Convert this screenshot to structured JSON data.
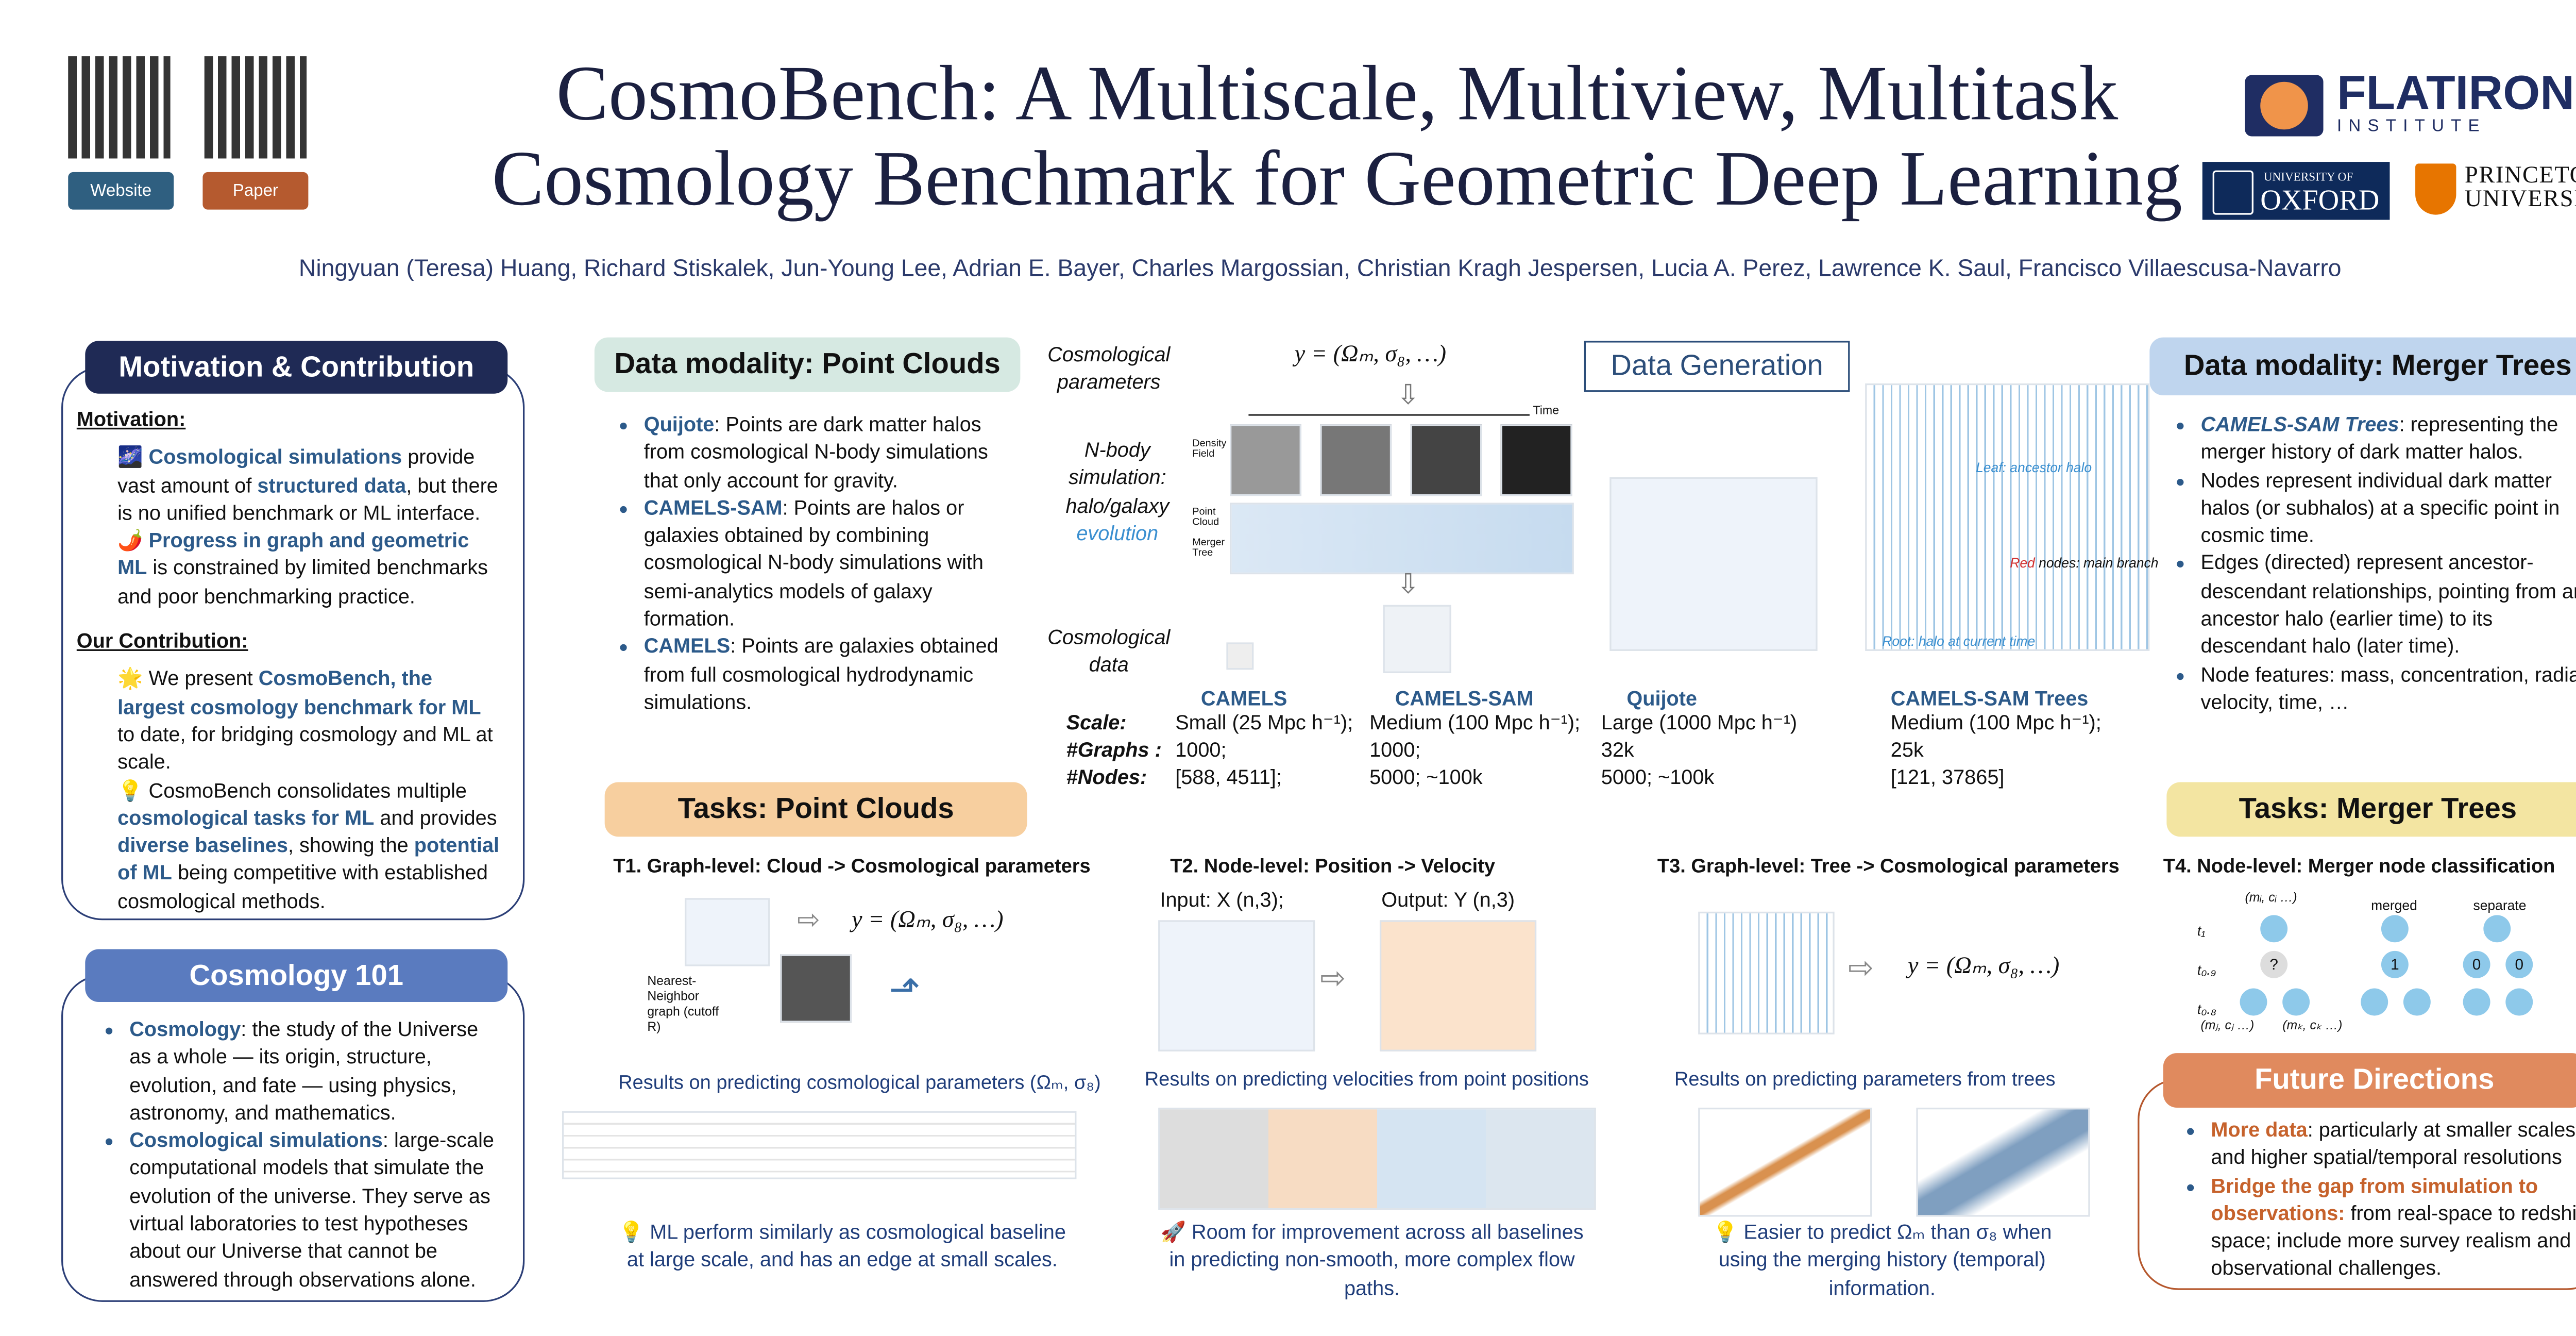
{
  "header": {
    "title_lines": [
      "CosmoBench: A Multiscale, Multiview, Multitask",
      "Cosmology Benchmark for Geometric Deep Learning"
    ],
    "authors": "Ningyuan (Teresa) Huang, Richard Stiskalek, Jun-Young Lee, Adrian E. Bayer, Charles Margossian, Christian Kragh Jespersen, Lucia A. Perez, Lawrence K. Saul, Francisco Villaescusa-Navarro",
    "buttons": [
      "Website",
      "Paper"
    ],
    "logos": {
      "flatiron": [
        "FLATIRON",
        "INSTITUTE"
      ],
      "oxford": [
        "UNIVERSITY OF",
        "OXFORD"
      ],
      "princeton": [
        "PRINCETON",
        "UNIVERSITY"
      ]
    }
  },
  "motivation": {
    "heading": "Motivation & Contribution",
    "sections": [
      {
        "heading": "Motivation:",
        "paragraphs": [
          [
            {
              "t": "🌌 "
            },
            {
              "t": "Cosmological simulations",
              "s": "hl"
            },
            {
              "t": " provide vast amount of "
            },
            {
              "t": "structured data",
              "s": "hl"
            },
            {
              "t": ", but there is no unified benchmark or ML interface."
            }
          ],
          [
            {
              "t": "🌶️ "
            },
            {
              "t": "Progress in graph and geometric ML",
              "s": "hl"
            },
            {
              "t": " is constrained by limited benchmarks and poor benchmarking practice."
            }
          ]
        ]
      },
      {
        "heading": "Our Contribution:",
        "paragraphs": [
          [
            {
              "t": "🌟 We present "
            },
            {
              "t": "CosmoBench, the largest cosmology benchmark for ML",
              "s": "hl"
            },
            {
              "t": " to date, for bridging cosmology and ML at scale."
            }
          ],
          [
            {
              "t": "💡 CosmoBench consolidates multiple "
            },
            {
              "t": "cosmological tasks for ML",
              "s": "hl"
            },
            {
              "t": " and provides "
            },
            {
              "t": "diverse baselines",
              "s": "hl"
            },
            {
              "t": ", showing the "
            },
            {
              "t": "potential of ML",
              "s": "hl"
            },
            {
              "t": " being competitive with established cosmological methods."
            }
          ]
        ]
      }
    ]
  },
  "cosmology101": {
    "heading": "Cosmology 101",
    "bullets": [
      [
        {
          "t": "Cosmology",
          "s": "hl"
        },
        {
          "t": ": the study of the Universe as a whole — its origin, structure, evolution, and fate — using physics, astronomy, and mathematics."
        }
      ],
      [
        {
          "t": "Cosmological simulations",
          "s": "hl"
        },
        {
          "t": ": large-scale computational models that simulate the evolution of the universe. They serve as virtual laboratories to test hypotheses about our Universe that cannot be answered through observations alone."
        }
      ]
    ]
  },
  "point_clouds": {
    "heading": "Data modality: Point Clouds",
    "bullets": [
      [
        {
          "t": "Quijote",
          "s": "hl"
        },
        {
          "t": ": Points are dark matter halos from cosmological N-body simulations that only account for gravity."
        }
      ],
      [
        {
          "t": "CAMELS-SAM",
          "s": "hl"
        },
        {
          "t": ": Points are halos or galaxies obtained by combining cosmological N-body simulations with semi-analytics models of galaxy formation."
        }
      ],
      [
        {
          "t": "CAMELS",
          "s": "hl"
        },
        {
          "t": ":  Points are galaxies obtained from full cosmological hydrodynamic simulations."
        }
      ]
    ]
  },
  "generation": {
    "heading": "Data Generation",
    "cosmo_params": "Cosmological parameters",
    "formula": "y = (Ωₘ,  σ₈,  …)",
    "time": "Time",
    "sim_label": [
      {
        "t": "N-body simulation: halo/galaxy "
      },
      {
        "t": "evolution",
        "s": "blue"
      }
    ],
    "row_labels": [
      "Density Field",
      "Point Cloud",
      "Merger Tree"
    ],
    "cosmo_data": "Cosmological data",
    "tree_notes": {
      "leaf": "Leaf: ancestor halo",
      "red": "Red",
      "red_rest": " nodes: main branch",
      "root": "Root: halo at current time"
    }
  },
  "stats": {
    "labels": [
      "Scale:",
      "#Graphs :",
      "#Nodes:"
    ],
    "columns": [
      {
        "name": "CAMELS",
        "rows": [
          "Small (25 Mpc h⁻¹);",
          "1000;",
          "[588, 4511];"
        ]
      },
      {
        "name": "CAMELS-SAM",
        "rows": [
          "Medium (100 Mpc h⁻¹);",
          "1000;",
          "5000; ~100k"
        ]
      },
      {
        "name": "Quijote",
        "rows": [
          "Large (1000 Mpc h⁻¹)",
          "32k",
          "5000; ~100k"
        ]
      },
      {
        "name": "CAMELS-SAM Trees",
        "rows": [
          "Medium (100 Mpc h⁻¹);",
          "25k",
          "[121, 37865]"
        ]
      }
    ]
  },
  "merger_trees": {
    "heading": "Data modality: Merger Trees",
    "bullets": [
      [
        {
          "t": "CAMELS-SAM Trees",
          "s": "hli"
        },
        {
          "t": ":  representing the merger history of dark matter halos."
        }
      ],
      [
        {
          "t": "Nodes represent individual dark matter halos (or subhalos) at a specific point in cosmic time."
        }
      ],
      [
        {
          "t": "Edges (directed) represent ancestor-descendant relationships, pointing from an ancestor halo (earlier time) to its descendant halo (later time)."
        }
      ],
      [
        {
          "t": "Node features: mass, concentration, radial velocity, time, …"
        }
      ]
    ]
  },
  "tasks_pc": {
    "heading": "Tasks: Point Clouds"
  },
  "tasks_mt": {
    "heading": "Tasks: Merger Trees"
  },
  "tasks": [
    {
      "title": "T1. Graph-level: Cloud -> Cosmological parameters",
      "formula": "y = (Ωₘ,  σ₈,  …)",
      "note": "Nearest-Neighbor graph (cutoff R)",
      "results": "Results on predicting cosmological parameters (Ωₘ, σ₈)",
      "caption": "💡 ML perform similarly as cosmological baseline at large scale, and has an edge at small scales."
    },
    {
      "title": "T2. Node-level: Position -> Velocity",
      "input": "Input: X (n,3);",
      "output": "Output: Y (n,3)",
      "results": "Results on predicting velocities from point positions",
      "caption": "🚀 Room for improvement across all baselines in predicting non-smooth, more complex flow paths."
    },
    {
      "title": "T3. Graph-level: Tree -> Cosmological parameters",
      "formula": "y = (Ωₘ,  σ₈,  …)",
      "results": "Results on predicting parameters from trees",
      "caption": "💡 Easier to predict Ωₘ than σ₈ when using the merging history (temporal) information."
    },
    {
      "title": "T4. Node-level: Merger node classification",
      "times": [
        "t₁",
        "t₀.₉",
        "t₀.₈"
      ],
      "top": "(mᵢ, cᵢ …)",
      "unknown": "?",
      "left": "(mⱼ, cⱼ …)",
      "right": "(mₖ, cₖ …)",
      "merged": "merged",
      "separate": "separate",
      "merged_node": "1",
      "sep_nodes": [
        "0",
        "0"
      ]
    }
  ],
  "future": {
    "heading": "Future Directions",
    "bullets": [
      [
        {
          "t": "More data",
          "s": "or"
        },
        {
          "t": ": particularly at smaller scales and higher spatial/temporal resolutions"
        }
      ],
      [
        {
          "t": "Bridge the gap from simulation to observations:",
          "s": "or"
        },
        {
          "t": " from real-space to redshift space; include more survey realism and observational challenges."
        }
      ]
    ]
  }
}
